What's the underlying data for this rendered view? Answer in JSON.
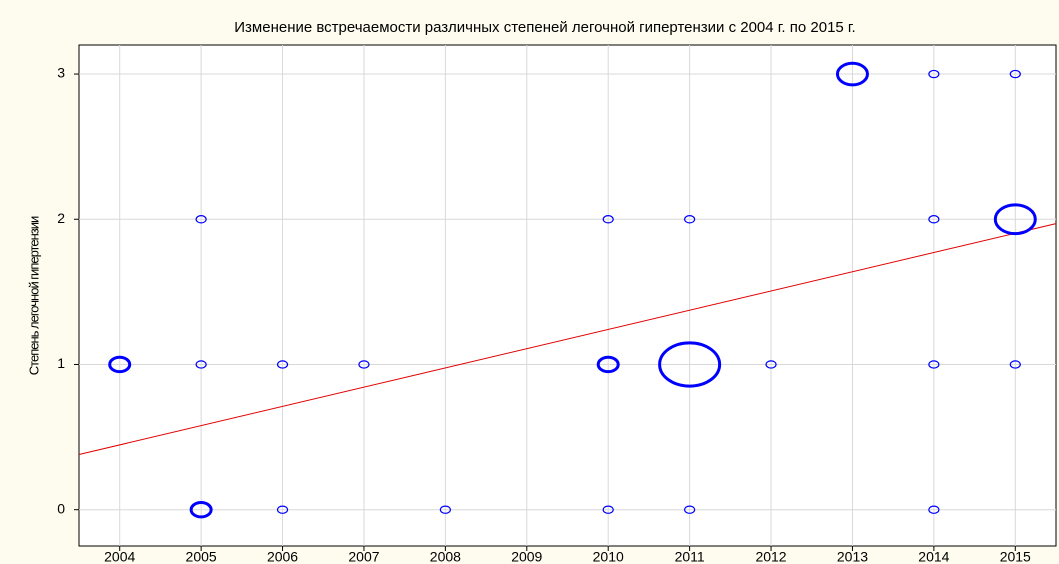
{
  "chart_data": {
    "type": "scatter",
    "title": "Изменение встречаемости различных степеней легочной гипертензии с 2004 г. по 2015 г.",
    "y_label": "Степень легочной гипертензии",
    "xlim": [
      2003.5,
      2015.5
    ],
    "xticks": [
      2004,
      2005,
      2006,
      2007,
      2008,
      2009,
      2010,
      2011,
      2012,
      2013,
      2014,
      2015
    ],
    "ylim": [
      -0.25,
      3.2
    ],
    "yticks": [
      0,
      1,
      2,
      3
    ],
    "grid": true,
    "series": [
      {
        "color": "#0000ff",
        "x": [
          2013,
          2014,
          2015,
          2005,
          2010,
          2011,
          2014,
          2015,
          2004,
          2005,
          2006,
          2007,
          2010,
          2011,
          2012,
          2014,
          2015,
          2005,
          2006,
          2008,
          2010,
          2011,
          2014
        ],
        "values": [
          3,
          3,
          3,
          2,
          2,
          2,
          2,
          2,
          1,
          1,
          1,
          1,
          1,
          1,
          1,
          1,
          1,
          0,
          0,
          0,
          0,
          0,
          0
        ],
        "sizes": [
          3,
          1,
          1,
          1,
          1,
          1,
          1,
          4,
          2,
          1,
          1,
          1,
          2,
          6,
          1,
          1,
          1,
          2,
          1,
          1,
          1,
          1,
          1
        ]
      }
    ],
    "trend": {
      "color": "#e00000",
      "x": [
        2003.5,
        2015.5
      ],
      "values": [
        0.38,
        1.97
      ]
    }
  }
}
